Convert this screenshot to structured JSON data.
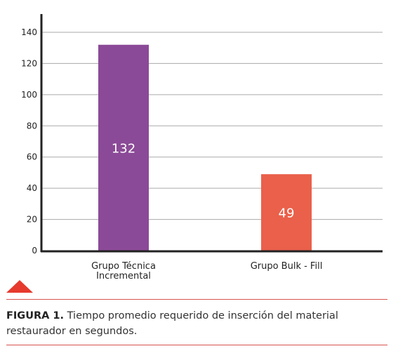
{
  "chart_data": {
    "type": "bar",
    "categories": [
      [
        "Grupo Técnica",
        "Incremental"
      ],
      [
        "Grupo Bulk - Fill"
      ]
    ],
    "values": [
      132,
      49
    ],
    "data_labels": [
      "132",
      "49"
    ],
    "colors": [
      "#8b4a97",
      "#ea604a"
    ],
    "ylim": [
      0,
      140
    ],
    "yticks": [
      0,
      20,
      40,
      60,
      80,
      100,
      120,
      140
    ],
    "grid": true,
    "title": "",
    "xlabel": "",
    "ylabel": ""
  },
  "caption": {
    "lead": "FIGURA 1.",
    "text": " Tiempo promedio requerido de inserción del material restaurador en segundos."
  },
  "colors": {
    "accent": "#e63a2e",
    "rule": "#d9534f",
    "grid": "#aaaaaa",
    "axis": "#222222"
  }
}
